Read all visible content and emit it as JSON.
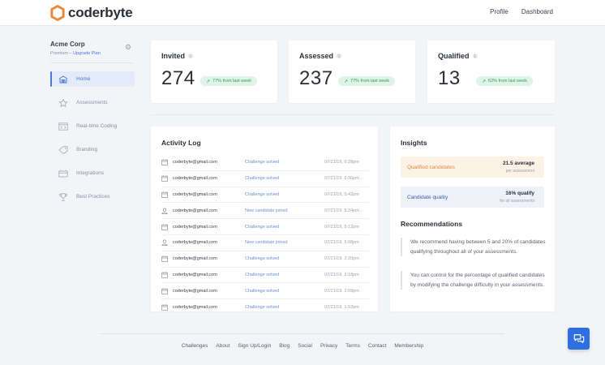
{
  "brand": {
    "name": "coderbyte",
    "color": "#e9883a"
  },
  "topnav": {
    "profile": "Profile",
    "dashboard": "Dashboard"
  },
  "sidebar": {
    "org_name": "Acme Corp",
    "plan": "Premium",
    "sep": " – ",
    "upgrade": "Upgrade Plan",
    "items": [
      {
        "label": "Home",
        "icon": "home-icon",
        "active": true
      },
      {
        "label": "Assessments",
        "icon": "star-icon"
      },
      {
        "label": "Real-time Coding",
        "icon": "code-window-icon"
      },
      {
        "label": "Branding",
        "icon": "tag-icon"
      },
      {
        "label": "Integrations",
        "icon": "integration-icon"
      },
      {
        "label": "Best Practices",
        "icon": "trophy-icon"
      }
    ]
  },
  "stats": [
    {
      "title": "Invited",
      "value": "274",
      "badge": "77% from last week"
    },
    {
      "title": "Assessed",
      "value": "237",
      "badge": "77% from last week"
    },
    {
      "title": "Qualified",
      "value": "13",
      "badge": "62% from last week"
    }
  ],
  "activity": {
    "title": "Activity Log",
    "rows": [
      {
        "icon": "calendar-icon",
        "email": "coderbyte@gmail.com",
        "action": "Challenge solved",
        "time": "07/21/19, 6:28pm"
      },
      {
        "icon": "calendar-icon",
        "email": "coderbyte@gmail.com",
        "action": "Challenge solved",
        "time": "07/21/19, 6:00pm"
      },
      {
        "icon": "calendar-icon",
        "email": "coderbyte@gmail.com",
        "action": "Challenge solved",
        "time": "07/21/19, 5:42pm"
      },
      {
        "icon": "user-icon",
        "email": "coderbyte@gmail.com",
        "action": "New candidate joined",
        "time": "07/21/19, 5:24pm"
      },
      {
        "icon": "calendar-icon",
        "email": "coderbyte@gmail.com",
        "action": "Challenge solved",
        "time": "07/21/19, 5:12pm"
      },
      {
        "icon": "user-icon",
        "email": "coderbyte@gmail.com",
        "action": "New candidate joined",
        "time": "07/21/19, 5:08pm"
      },
      {
        "icon": "calendar-icon",
        "email": "coderbyte@gmail.com",
        "action": "Challenge solved",
        "time": "07/21/19, 2:20pm"
      },
      {
        "icon": "calendar-icon",
        "email": "coderbyte@gmail.com",
        "action": "Challenge solved",
        "time": "07/21/19, 2:18pm"
      },
      {
        "icon": "calendar-icon",
        "email": "coderbyte@gmail.com",
        "action": "Challenge solved",
        "time": "07/21/19, 2:09pm"
      },
      {
        "icon": "calendar-icon",
        "email": "coderbyte@gmail.com",
        "action": "Challenge solved",
        "time": "07/21/19, 1:52pm"
      }
    ]
  },
  "insights": {
    "title": "Insights",
    "qualified": {
      "label": "Qualified candidates",
      "value": "21.5 average",
      "sub": "per assessment"
    },
    "quality": {
      "label": "Candidate quality",
      "value": "16% qualify",
      "sub": "for all assessments"
    },
    "rec_title": "Recommendations",
    "rec1": "We recommend having between 5 and 20% of candidates qualifying throughout all of your assessments.",
    "rec2": "You can control for the percentage of qualified candidates by modifying the challenge difficulty in your assessments."
  },
  "footer": [
    "Challenges",
    "About",
    "Sign Up/Login",
    "Blog",
    "Social",
    "Privacy",
    "Terms",
    "Contact",
    "Membership"
  ],
  "colors": {
    "accent": "#4a7ad9",
    "success": "#2e9d5b",
    "warning": "#e08a3c",
    "chat": "#2f6fe0"
  }
}
